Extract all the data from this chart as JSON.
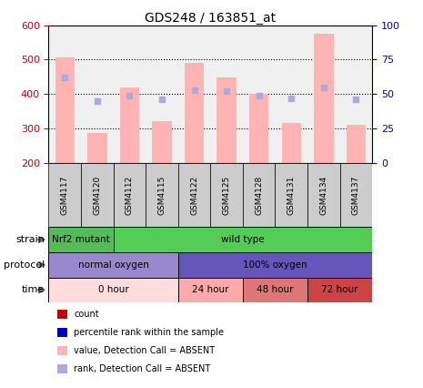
{
  "title": "GDS248 / 163851_at",
  "samples": [
    "GSM4117",
    "GSM4120",
    "GSM4112",
    "GSM4115",
    "GSM4122",
    "GSM4125",
    "GSM4128",
    "GSM4131",
    "GSM4134",
    "GSM4137"
  ],
  "bar_values": [
    507,
    287,
    418,
    322,
    490,
    448,
    400,
    317,
    575,
    312
  ],
  "rank_values": [
    62,
    45,
    49,
    46,
    53,
    52,
    49,
    47,
    55,
    46
  ],
  "ylim_left": [
    200,
    600
  ],
  "ylim_right": [
    0,
    100
  ],
  "yticks_left": [
    200,
    300,
    400,
    500,
    600
  ],
  "yticks_right": [
    0,
    25,
    50,
    75,
    100
  ],
  "bar_color": "#ffb3b3",
  "rank_color": "#aaaadd",
  "strain_groups": [
    {
      "label": "Nrf2 mutant",
      "start": 0,
      "end": 2,
      "color": "#55bb55"
    },
    {
      "label": "wild type",
      "start": 2,
      "end": 10,
      "color": "#55cc55"
    }
  ],
  "protocol_groups": [
    {
      "label": "normal oxygen",
      "start": 0,
      "end": 4,
      "color": "#9988cc"
    },
    {
      "label": "100% oxygen",
      "start": 4,
      "end": 10,
      "color": "#6655bb"
    }
  ],
  "time_groups": [
    {
      "label": "0 hour",
      "start": 0,
      "end": 4,
      "color": "#ffdddd"
    },
    {
      "label": "24 hour",
      "start": 4,
      "end": 6,
      "color": "#ffaaaa"
    },
    {
      "label": "48 hour",
      "start": 6,
      "end": 8,
      "color": "#dd7777"
    },
    {
      "label": "72 hour",
      "start": 8,
      "end": 10,
      "color": "#cc4444"
    }
  ],
  "row_labels": [
    "strain",
    "protocol",
    "time"
  ],
  "legend_items": [
    {
      "label": "count",
      "color": "#cc0000"
    },
    {
      "label": "percentile rank within the sample",
      "color": "#0000cc"
    },
    {
      "label": "value, Detection Call = ABSENT",
      "color": "#ffb3b3"
    },
    {
      "label": "rank, Detection Call = ABSENT",
      "color": "#aaaadd"
    }
  ],
  "background_color": "#ffffff",
  "tick_label_color_left": "#cc0000",
  "tick_label_color_right": "#0000cc",
  "chart_bg": "#f0f0f0",
  "sample_box_color": "#cccccc"
}
